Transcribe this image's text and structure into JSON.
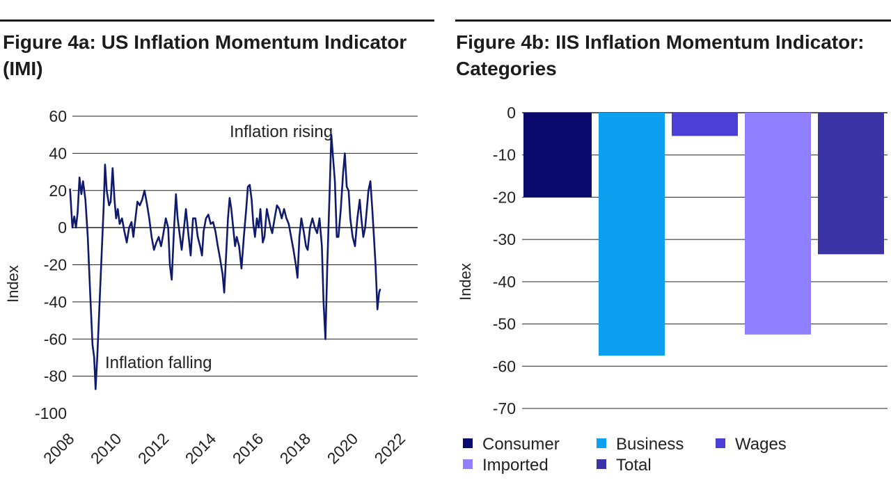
{
  "chart_data": [
    {
      "type": "line",
      "title": "Figure 4a: US Inflation Momentum Indicator (IMI)",
      "ylabel": "Index",
      "xlabel": "",
      "ylim": [
        -100,
        60
      ],
      "yticks": [
        "60",
        "40",
        "20",
        "0",
        "-20",
        "-40",
        "-60",
        "-80",
        "-100"
      ],
      "ytick_values": [
        60,
        40,
        20,
        0,
        -20,
        -40,
        -60,
        -80,
        -100
      ],
      "xlim": [
        2008.0,
        2022.6
      ],
      "xticks": [
        "2008",
        "2010",
        "2012",
        "2014",
        "2016",
        "2018",
        "2020",
        "2022"
      ],
      "xtick_values": [
        2008,
        2010,
        2012,
        2014,
        2016,
        2018,
        2020,
        2022
      ],
      "annotations": [
        "Inflation rising",
        "Inflation falling"
      ],
      "line_color": "#0f1a6e",
      "series": [
        {
          "name": "IMI",
          "points": [
            [
              2007.9,
              21
            ],
            [
              2008.0,
              0
            ],
            [
              2008.08,
              6
            ],
            [
              2008.15,
              0
            ],
            [
              2008.22,
              8
            ],
            [
              2008.3,
              27
            ],
            [
              2008.38,
              18
            ],
            [
              2008.45,
              25
            ],
            [
              2008.55,
              15
            ],
            [
              2008.65,
              -5
            ],
            [
              2008.75,
              -35
            ],
            [
              2008.85,
              -63
            ],
            [
              2008.92,
              -70
            ],
            [
              2008.98,
              -87
            ],
            [
              2009.05,
              -70
            ],
            [
              2009.15,
              -40
            ],
            [
              2009.25,
              -10
            ],
            [
              2009.32,
              10
            ],
            [
              2009.38,
              34
            ],
            [
              2009.45,
              20
            ],
            [
              2009.55,
              12
            ],
            [
              2009.62,
              14
            ],
            [
              2009.7,
              32
            ],
            [
              2009.78,
              15
            ],
            [
              2009.85,
              5
            ],
            [
              2009.92,
              10
            ],
            [
              2010.0,
              2
            ],
            [
              2010.1,
              5
            ],
            [
              2010.2,
              -2
            ],
            [
              2010.3,
              -8
            ],
            [
              2010.4,
              0
            ],
            [
              2010.5,
              3
            ],
            [
              2010.58,
              -5
            ],
            [
              2010.65,
              3
            ],
            [
              2010.75,
              14
            ],
            [
              2010.85,
              12
            ],
            [
              2010.95,
              15
            ],
            [
              2011.05,
              20
            ],
            [
              2011.15,
              13
            ],
            [
              2011.25,
              5
            ],
            [
              2011.35,
              -5
            ],
            [
              2011.45,
              -12
            ],
            [
              2011.55,
              -8
            ],
            [
              2011.65,
              -5
            ],
            [
              2011.75,
              -10
            ],
            [
              2011.85,
              -3
            ],
            [
              2011.95,
              5
            ],
            [
              2012.05,
              0
            ],
            [
              2012.12,
              -20
            ],
            [
              2012.2,
              -28
            ],
            [
              2012.3,
              0
            ],
            [
              2012.38,
              18
            ],
            [
              2012.45,
              5
            ],
            [
              2012.55,
              -5
            ],
            [
              2012.62,
              -12
            ],
            [
              2012.72,
              0
            ],
            [
              2012.8,
              10
            ],
            [
              2012.9,
              -3
            ],
            [
              2013.0,
              -15
            ],
            [
              2013.1,
              5
            ],
            [
              2013.2,
              5
            ],
            [
              2013.3,
              -5
            ],
            [
              2013.4,
              -10
            ],
            [
              2013.48,
              -15
            ],
            [
              2013.55,
              -2
            ],
            [
              2013.65,
              5
            ],
            [
              2013.75,
              7
            ],
            [
              2013.85,
              2
            ],
            [
              2013.95,
              3
            ],
            [
              2014.05,
              -2
            ],
            [
              2014.15,
              -10
            ],
            [
              2014.25,
              -17
            ],
            [
              2014.35,
              -25
            ],
            [
              2014.42,
              -35
            ],
            [
              2014.5,
              -15
            ],
            [
              2014.58,
              5
            ],
            [
              2014.65,
              16
            ],
            [
              2014.72,
              10
            ],
            [
              2014.8,
              0
            ],
            [
              2014.88,
              -10
            ],
            [
              2014.95,
              -5
            ],
            [
              2015.05,
              -10
            ],
            [
              2015.15,
              -22
            ],
            [
              2015.25,
              -5
            ],
            [
              2015.35,
              10
            ],
            [
              2015.42,
              22
            ],
            [
              2015.5,
              23
            ],
            [
              2015.58,
              15
            ],
            [
              2015.65,
              2
            ],
            [
              2015.72,
              -5
            ],
            [
              2015.8,
              5
            ],
            [
              2015.88,
              0
            ],
            [
              2015.95,
              10
            ],
            [
              2016.05,
              -8
            ],
            [
              2016.12,
              -5
            ],
            [
              2016.22,
              10
            ],
            [
              2016.3,
              5
            ],
            [
              2016.38,
              0
            ],
            [
              2016.45,
              -3
            ],
            [
              2016.55,
              5
            ],
            [
              2016.65,
              12
            ],
            [
              2016.75,
              10
            ],
            [
              2016.85,
              5
            ],
            [
              2016.95,
              10
            ],
            [
              2017.05,
              5
            ],
            [
              2017.15,
              2
            ],
            [
              2017.25,
              -5
            ],
            [
              2017.35,
              -12
            ],
            [
              2017.45,
              -20
            ],
            [
              2017.52,
              -27
            ],
            [
              2017.6,
              -5
            ],
            [
              2017.68,
              5
            ],
            [
              2017.78,
              -2
            ],
            [
              2017.88,
              -10
            ],
            [
              2017.95,
              -12
            ],
            [
              2018.05,
              0
            ],
            [
              2018.15,
              5
            ],
            [
              2018.25,
              0
            ],
            [
              2018.35,
              -3
            ],
            [
              2018.45,
              5
            ],
            [
              2018.55,
              -10
            ],
            [
              2018.62,
              -40
            ],
            [
              2018.7,
              -60
            ],
            [
              2018.78,
              -20
            ],
            [
              2018.88,
              20
            ],
            [
              2018.95,
              50
            ],
            [
              2019.02,
              38
            ],
            [
              2019.1,
              25
            ],
            [
              2019.18,
              -5
            ],
            [
              2019.25,
              -5
            ],
            [
              2019.35,
              10
            ],
            [
              2019.45,
              30
            ],
            [
              2019.52,
              40
            ],
            [
              2019.6,
              22
            ],
            [
              2019.68,
              20
            ],
            [
              2019.75,
              5
            ],
            [
              2019.85,
              -5
            ],
            [
              2019.95,
              -10
            ],
            [
              2020.05,
              5
            ],
            [
              2020.15,
              15
            ],
            [
              2020.22,
              5
            ],
            [
              2020.3,
              -5
            ],
            [
              2020.38,
              0
            ],
            [
              2020.45,
              10
            ],
            [
              2020.52,
              20
            ],
            [
              2020.6,
              25
            ],
            [
              2020.68,
              10
            ],
            [
              2020.75,
              -5
            ],
            [
              2020.82,
              -20
            ],
            [
              2020.9,
              -44
            ],
            [
              2020.97,
              -35
            ],
            [
              2021.02,
              -33
            ]
          ]
        }
      ]
    },
    {
      "type": "bar",
      "title": "Figure 4b: IIS Inflation Momentum Indicator: Categories",
      "ylabel": "Index",
      "xlabel": "",
      "ylim": [
        -70,
        0
      ],
      "yticks": [
        "0",
        "-10",
        "-20",
        "-30",
        "-40",
        "-50",
        "-60",
        "-70"
      ],
      "ytick_values": [
        0,
        -10,
        -20,
        -30,
        -40,
        -50,
        -60,
        -70
      ],
      "categories": [
        "Consumer",
        "Business",
        "Wages",
        "Imported",
        "Total"
      ],
      "values": [
        -20,
        -57.5,
        -5.5,
        -52.5,
        -33.5
      ],
      "colors": [
        "#0a0a6e",
        "#0ea0f0",
        "#4c3fd6",
        "#9080ff",
        "#3b34a6"
      ],
      "legend": [
        {
          "label": "Consumer",
          "color": "#0a0a6e"
        },
        {
          "label": "Business",
          "color": "#0ea0f0"
        },
        {
          "label": "Wages",
          "color": "#4c3fd6"
        },
        {
          "label": "Imported",
          "color": "#9080ff"
        },
        {
          "label": "Total",
          "color": "#3b34a6"
        }
      ],
      "legend_position": "bottom"
    }
  ]
}
